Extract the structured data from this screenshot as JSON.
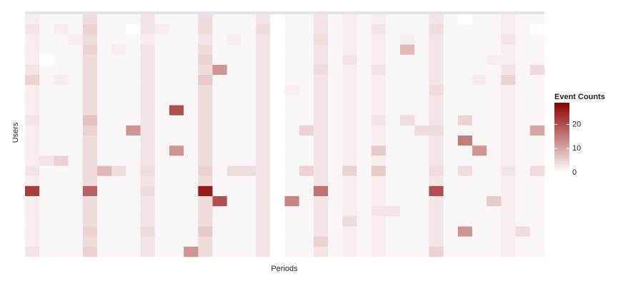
{
  "chart_data": {
    "type": "heatmap",
    "x_label": "Periods",
    "y_label": "Users",
    "legend_title": "Event Counts",
    "colors": [
      "#ffffff",
      "#8b0000"
    ],
    "zlim": [
      0,
      29
    ],
    "zticks": [
      0,
      10,
      20
    ],
    "z": [
      [
        2,
        1,
        1,
        1,
        4,
        1,
        1,
        1,
        3,
        1,
        1,
        1,
        4,
        1,
        1,
        1,
        3,
        0,
        1,
        1,
        3,
        1,
        2,
        1,
        2,
        1,
        1,
        1,
        3,
        1,
        0,
        1,
        1,
        2,
        1,
        1
      ],
      [
        3,
        1,
        2,
        1,
        5,
        1,
        1,
        0,
        3,
        2,
        1,
        1,
        4,
        1,
        1,
        1,
        4,
        0,
        1,
        1,
        3,
        1,
        2,
        1,
        3,
        1,
        1,
        1,
        4,
        1,
        1,
        1,
        1,
        2,
        1,
        0
      ],
      [
        2,
        1,
        1,
        2,
        4,
        1,
        1,
        1,
        2,
        1,
        1,
        1,
        3,
        1,
        2,
        1,
        3,
        0,
        1,
        1,
        4,
        1,
        2,
        1,
        2,
        1,
        2,
        1,
        3,
        1,
        1,
        1,
        1,
        3,
        1,
        1
      ],
      [
        2,
        1,
        1,
        1,
        5,
        1,
        2,
        1,
        3,
        1,
        1,
        1,
        4,
        1,
        1,
        1,
        3,
        0,
        1,
        1,
        3,
        1,
        2,
        1,
        2,
        1,
        8,
        1,
        3,
        1,
        1,
        1,
        1,
        2,
        1,
        1
      ],
      [
        2,
        0,
        1,
        1,
        4,
        1,
        1,
        1,
        3,
        1,
        1,
        1,
        5,
        1,
        1,
        1,
        3,
        0,
        1,
        1,
        3,
        1,
        3,
        1,
        2,
        1,
        1,
        1,
        3,
        1,
        1,
        1,
        2,
        2,
        1,
        1
      ],
      [
        3,
        1,
        1,
        1,
        4,
        1,
        1,
        1,
        3,
        1,
        1,
        1,
        4,
        12,
        1,
        1,
        3,
        0,
        1,
        1,
        4,
        1,
        2,
        1,
        3,
        1,
        1,
        1,
        3,
        1,
        1,
        1,
        1,
        3,
        1,
        4
      ],
      [
        5,
        1,
        2,
        1,
        4,
        1,
        1,
        1,
        3,
        1,
        1,
        1,
        6,
        1,
        1,
        1,
        3,
        0,
        1,
        1,
        3,
        1,
        2,
        1,
        2,
        1,
        1,
        1,
        3,
        1,
        1,
        2,
        1,
        5,
        1,
        1
      ],
      [
        2,
        1,
        1,
        1,
        4,
        1,
        1,
        1,
        3,
        1,
        1,
        1,
        4,
        1,
        1,
        1,
        3,
        0,
        2,
        1,
        3,
        1,
        2,
        1,
        2,
        1,
        1,
        1,
        4,
        1,
        1,
        1,
        1,
        2,
        1,
        1
      ],
      [
        2,
        1,
        1,
        1,
        4,
        1,
        1,
        1,
        3,
        1,
        1,
        1,
        4,
        1,
        1,
        1,
        3,
        0,
        1,
        1,
        3,
        1,
        2,
        1,
        2,
        1,
        1,
        1,
        3,
        1,
        1,
        1,
        1,
        2,
        1,
        1
      ],
      [
        2,
        1,
        1,
        1,
        4,
        1,
        1,
        1,
        3,
        1,
        20,
        1,
        4,
        1,
        1,
        1,
        3,
        0,
        1,
        1,
        3,
        1,
        2,
        1,
        2,
        1,
        1,
        1,
        3,
        1,
        1,
        1,
        1,
        2,
        1,
        1
      ],
      [
        3,
        1,
        1,
        1,
        7,
        1,
        1,
        1,
        3,
        1,
        1,
        1,
        4,
        1,
        1,
        1,
        3,
        0,
        1,
        1,
        3,
        1,
        2,
        1,
        3,
        1,
        4,
        1,
        3,
        1,
        5,
        1,
        1,
        2,
        1,
        1
      ],
      [
        2,
        1,
        1,
        1,
        5,
        1,
        1,
        12,
        3,
        1,
        1,
        1,
        4,
        1,
        1,
        1,
        3,
        0,
        1,
        5,
        3,
        1,
        2,
        1,
        2,
        1,
        1,
        4,
        4,
        1,
        1,
        1,
        1,
        2,
        1,
        10
      ],
      [
        2,
        1,
        1,
        1,
        4,
        1,
        1,
        1,
        3,
        1,
        1,
        1,
        4,
        1,
        1,
        1,
        3,
        0,
        1,
        1,
        3,
        1,
        2,
        1,
        2,
        1,
        1,
        1,
        3,
        1,
        15,
        1,
        1,
        2,
        1,
        1
      ],
      [
        2,
        1,
        1,
        1,
        4,
        1,
        1,
        1,
        3,
        1,
        12,
        1,
        4,
        1,
        1,
        1,
        3,
        0,
        1,
        1,
        3,
        1,
        2,
        1,
        6,
        1,
        1,
        1,
        3,
        1,
        1,
        12,
        1,
        2,
        1,
        1
      ],
      [
        2,
        3,
        5,
        1,
        4,
        1,
        1,
        1,
        3,
        1,
        1,
        1,
        4,
        1,
        1,
        1,
        3,
        0,
        1,
        1,
        3,
        1,
        2,
        1,
        2,
        1,
        1,
        1,
        3,
        1,
        1,
        1,
        1,
        2,
        1,
        1
      ],
      [
        3,
        1,
        1,
        1,
        4,
        8,
        4,
        1,
        4,
        1,
        1,
        1,
        5,
        1,
        4,
        4,
        3,
        0,
        1,
        5,
        3,
        1,
        5,
        1,
        6,
        1,
        1,
        1,
        4,
        1,
        4,
        1,
        1,
        3,
        1,
        4
      ],
      [
        2,
        1,
        1,
        1,
        4,
        1,
        1,
        1,
        3,
        1,
        1,
        1,
        4,
        1,
        1,
        1,
        3,
        0,
        1,
        1,
        3,
        1,
        2,
        1,
        2,
        1,
        1,
        1,
        3,
        1,
        1,
        1,
        1,
        2,
        1,
        1
      ],
      [
        22,
        1,
        1,
        1,
        18,
        1,
        1,
        1,
        4,
        1,
        1,
        1,
        26,
        1,
        1,
        1,
        3,
        0,
        1,
        1,
        16,
        1,
        2,
        1,
        2,
        1,
        1,
        1,
        20,
        1,
        1,
        1,
        1,
        2,
        1,
        1
      ],
      [
        2,
        1,
        1,
        1,
        4,
        1,
        1,
        1,
        3,
        1,
        1,
        1,
        4,
        20,
        1,
        1,
        3,
        0,
        14,
        1,
        3,
        1,
        2,
        1,
        2,
        1,
        1,
        1,
        3,
        1,
        1,
        1,
        6,
        2,
        1,
        1
      ],
      [
        2,
        1,
        1,
        1,
        4,
        1,
        1,
        1,
        3,
        1,
        1,
        1,
        4,
        1,
        1,
        1,
        3,
        0,
        1,
        1,
        3,
        1,
        2,
        1,
        3,
        3,
        1,
        1,
        3,
        1,
        1,
        1,
        1,
        2,
        1,
        1
      ],
      [
        2,
        1,
        1,
        1,
        4,
        1,
        1,
        1,
        3,
        1,
        1,
        1,
        4,
        1,
        1,
        1,
        3,
        0,
        1,
        1,
        3,
        1,
        4,
        1,
        2,
        1,
        1,
        1,
        3,
        1,
        1,
        1,
        1,
        2,
        1,
        1
      ],
      [
        2,
        1,
        1,
        1,
        5,
        1,
        1,
        1,
        4,
        1,
        1,
        1,
        6,
        1,
        1,
        1,
        3,
        0,
        1,
        1,
        3,
        1,
        2,
        1,
        2,
        1,
        1,
        1,
        3,
        1,
        12,
        1,
        1,
        2,
        4,
        1
      ],
      [
        2,
        1,
        1,
        1,
        4,
        1,
        1,
        1,
        3,
        1,
        1,
        1,
        4,
        1,
        1,
        1,
        3,
        0,
        1,
        1,
        5,
        1,
        2,
        1,
        2,
        1,
        1,
        1,
        3,
        1,
        1,
        1,
        1,
        2,
        1,
        1
      ],
      [
        3,
        1,
        1,
        1,
        5,
        1,
        1,
        1,
        3,
        1,
        1,
        12,
        4,
        1,
        1,
        1,
        3,
        0,
        1,
        1,
        3,
        1,
        2,
        1,
        2,
        1,
        1,
        1,
        5,
        1,
        1,
        1,
        1,
        2,
        1,
        1
      ]
    ]
  }
}
